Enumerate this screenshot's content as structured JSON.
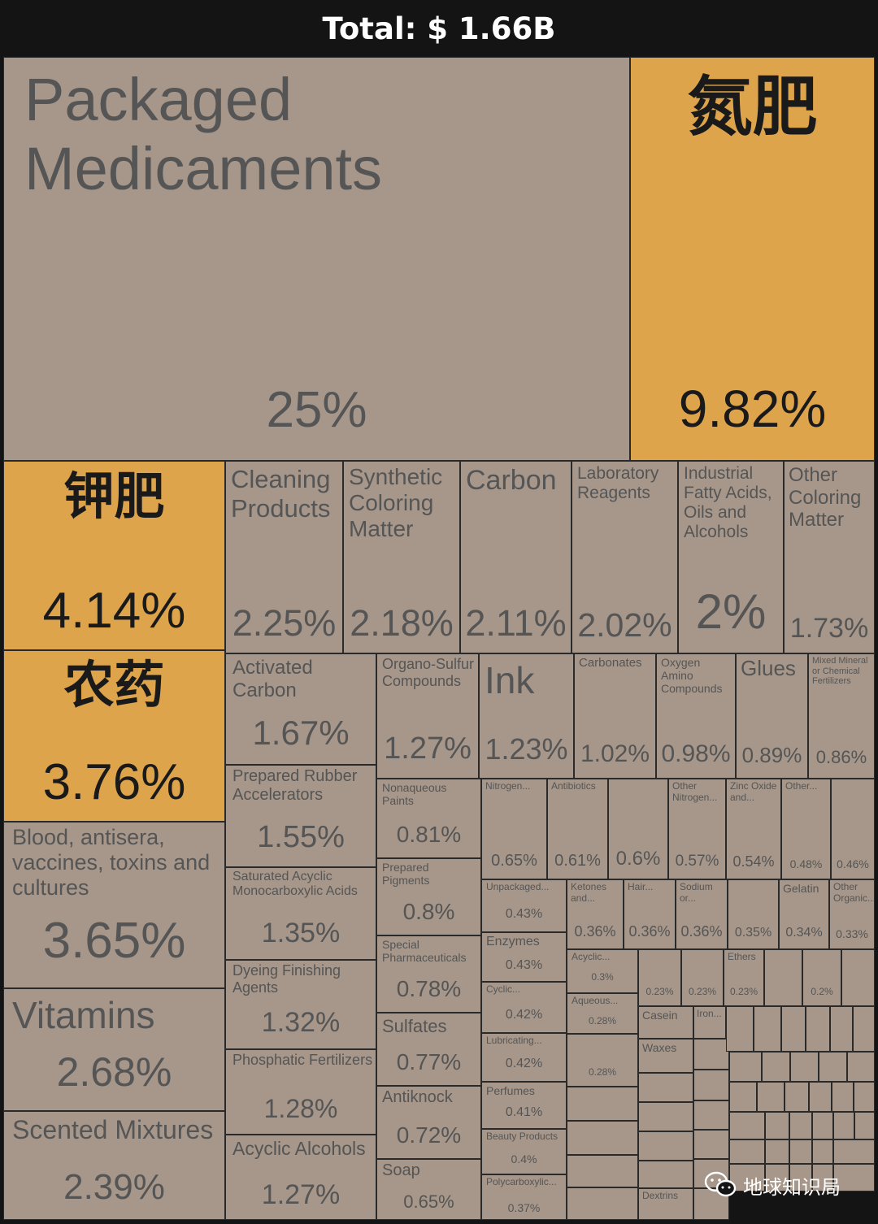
{
  "header": {
    "total": "Total: $ 1.66B"
  },
  "watermark": {
    "text": "地球知识局"
  },
  "colors": {
    "highlight": "#dea44b",
    "default": "#a6978a",
    "background": "#141414"
  },
  "chart_data": {
    "type": "treemap",
    "title": "Total: $ 1.66B",
    "unit": "% of total",
    "items": [
      {
        "label": "Packaged Medicaments",
        "value": 25,
        "display": "25%"
      },
      {
        "label": "氮肥",
        "value": 9.82,
        "display": "9.82%",
        "highlight": true
      },
      {
        "label": "钾肥",
        "value": 4.14,
        "display": "4.14%",
        "highlight": true
      },
      {
        "label": "农药",
        "value": 3.76,
        "display": "3.76%",
        "highlight": true
      },
      {
        "label": "Blood, antisera, vaccines, toxins and cultures",
        "value": 3.65,
        "display": "3.65%"
      },
      {
        "label": "Vitamins",
        "value": 2.68,
        "display": "2.68%"
      },
      {
        "label": "Scented Mixtures",
        "value": 2.39,
        "display": "2.39%"
      },
      {
        "label": "Cleaning Products",
        "value": 2.25,
        "display": "2.25%"
      },
      {
        "label": "Synthetic Coloring Matter",
        "value": 2.18,
        "display": "2.18%"
      },
      {
        "label": "Carbon",
        "value": 2.11,
        "display": "2.11%"
      },
      {
        "label": "Laboratory Reagents",
        "value": 2.02,
        "display": "2.02%"
      },
      {
        "label": "Industrial Fatty Acids, Oils and Alcohols",
        "value": 2,
        "display": "2%"
      },
      {
        "label": "Other Coloring Matter",
        "value": 1.73,
        "display": "1.73%"
      },
      {
        "label": "Activated Carbon",
        "value": 1.67,
        "display": "1.67%"
      },
      {
        "label": "Prepared Rubber Accelerators",
        "value": 1.55,
        "display": "1.55%"
      },
      {
        "label": "Saturated Acyclic Monocarboxylic Acids",
        "value": 1.35,
        "display": "1.35%"
      },
      {
        "label": "Dyeing Finishing Agents",
        "value": 1.32,
        "display": "1.32%"
      },
      {
        "label": "Phosphatic Fertilizers",
        "value": 1.28,
        "display": "1.28%"
      },
      {
        "label": "Acyclic Alcohols",
        "value": 1.27,
        "display": "1.27%"
      },
      {
        "label": "Organo-Sulfur Compounds",
        "value": 1.27,
        "display": "1.27%"
      },
      {
        "label": "Ink",
        "value": 1.23,
        "display": "1.23%"
      },
      {
        "label": "Carbonates",
        "value": 1.02,
        "display": "1.02%"
      },
      {
        "label": "Oxygen Amino Compounds",
        "value": 0.98,
        "display": "0.98%"
      },
      {
        "label": "Glues",
        "value": 0.89,
        "display": "0.89%"
      },
      {
        "label": "Mixed Mineral or Chemical Fertilizers",
        "value": 0.86,
        "display": "0.86%"
      },
      {
        "label": "Nonaqueous Paints",
        "value": 0.81,
        "display": "0.81%"
      },
      {
        "label": "Prepared Pigments",
        "value": 0.8,
        "display": "0.8%"
      },
      {
        "label": "Special Pharmaceuticals",
        "value": 0.78,
        "display": "0.78%"
      },
      {
        "label": "Sulfates",
        "value": 0.77,
        "display": "0.77%"
      },
      {
        "label": "Antiknock",
        "value": 0.72,
        "display": "0.72%"
      },
      {
        "label": "Soap",
        "value": 0.65,
        "display": "0.65%"
      },
      {
        "label": "Nitrogen...",
        "value": 0.65,
        "display": "0.65%"
      },
      {
        "label": "Antibiotics",
        "value": 0.61,
        "display": "0.61%"
      },
      {
        "label": "",
        "value": 0.6,
        "display": "0.6%"
      },
      {
        "label": "Other Nitrogen...",
        "value": 0.57,
        "display": "0.57%"
      },
      {
        "label": "Zinc Oxide and...",
        "value": 0.54,
        "display": "0.54%"
      },
      {
        "label": "Other...",
        "value": 0.48,
        "display": "0.48%"
      },
      {
        "label": "",
        "value": 0.46,
        "display": "0.46%"
      },
      {
        "label": "Unpackaged...",
        "value": 0.43,
        "display": "0.43%"
      },
      {
        "label": "Enzymes",
        "value": 0.43,
        "display": "0.43%"
      },
      {
        "label": "Cyclic...",
        "value": 0.42,
        "display": "0.42%"
      },
      {
        "label": "Lubricating...",
        "value": 0.42,
        "display": "0.42%"
      },
      {
        "label": "Perfumes",
        "value": 0.41,
        "display": "0.41%"
      },
      {
        "label": "Beauty Products",
        "value": 0.4,
        "display": "0.4%"
      },
      {
        "label": "Polycarboxylic...",
        "value": 0.37,
        "display": "0.37%"
      },
      {
        "label": "Ketones and...",
        "value": 0.36,
        "display": "0.36%"
      },
      {
        "label": "Hair...",
        "value": 0.36,
        "display": "0.36%"
      },
      {
        "label": "Sodium or...",
        "value": 0.36,
        "display": "0.36%"
      },
      {
        "label": "",
        "value": 0.35,
        "display": "0.35%"
      },
      {
        "label": "Gelatin",
        "value": 0.34,
        "display": "0.34%"
      },
      {
        "label": "Other Organic...",
        "value": 0.33,
        "display": "0.33%"
      },
      {
        "label": "Acyclic...",
        "value": 0.3,
        "display": "0.3%"
      },
      {
        "label": "Aqueous...",
        "value": 0.28,
        "display": "0.28%"
      },
      {
        "label": "",
        "value": 0.28,
        "display": "0.28%"
      },
      {
        "label": "",
        "value": 0.23,
        "display": "0.23%"
      },
      {
        "label": "",
        "value": 0.23,
        "display": "0.23%"
      },
      {
        "label": "Ethers",
        "value": 0.23,
        "display": "0.23%"
      },
      {
        "label": "",
        "value": 0.2,
        "display": "0.2%"
      },
      {
        "label": "Casein",
        "value": null,
        "display": ""
      },
      {
        "label": "Iron...",
        "value": null,
        "display": ""
      },
      {
        "label": "Waxes",
        "value": null,
        "display": ""
      },
      {
        "label": "Dextrins",
        "value": null,
        "display": ""
      }
    ]
  }
}
